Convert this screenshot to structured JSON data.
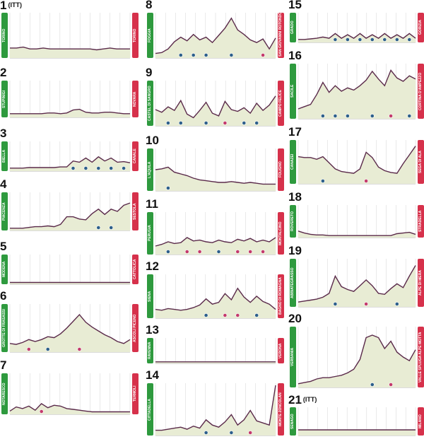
{
  "chart_data": [
    {
      "type": "area",
      "stage": "1",
      "tag": "(ITT)",
      "start": "TORINO",
      "finish": "TORINO",
      "values": [
        0.22,
        0.22,
        0.24,
        0.2,
        0.2,
        0.22,
        0.2,
        0.2,
        0.2,
        0.2,
        0.2,
        0.2,
        0.2,
        0.18,
        0.2,
        0.22,
        0.2,
        0.2,
        0.2
      ]
    },
    {
      "type": "area",
      "stage": "2",
      "tag": "",
      "start": "STUPINIGI",
      "finish": "NOVARA",
      "values": [
        0.1,
        0.1,
        0.1,
        0.1,
        0.1,
        0.1,
        0.12,
        0.12,
        0.1,
        0.12,
        0.2,
        0.22,
        0.14,
        0.12,
        0.12,
        0.14,
        0.14,
        0.12,
        0.1,
        0.1
      ]
    },
    {
      "type": "area",
      "stage": "3",
      "tag": "",
      "start": "BIELLA",
      "finish": "CANALE",
      "values": [
        0.1,
        0.1,
        0.1,
        0.12,
        0.12,
        0.12,
        0.12,
        0.12,
        0.14,
        0.14,
        0.34,
        0.3,
        0.44,
        0.3,
        0.48,
        0.34,
        0.44,
        0.3,
        0.32,
        0.28
      ]
    },
    {
      "type": "area",
      "stage": "4",
      "tag": "",
      "start": "PIACENZA",
      "finish": "SESTOLA",
      "values": [
        0.06,
        0.06,
        0.06,
        0.08,
        0.1,
        0.1,
        0.12,
        0.1,
        0.16,
        0.36,
        0.36,
        0.3,
        0.28,
        0.44,
        0.56,
        0.42,
        0.56,
        0.5,
        0.66,
        0.72
      ]
    },
    {
      "type": "area",
      "stage": "5",
      "tag": "",
      "start": "MODENA",
      "finish": "CATTOLICA",
      "values": [
        0.06,
        0.06,
        0.06,
        0.06,
        0.06,
        0.06,
        0.06,
        0.06,
        0.06,
        0.06,
        0.06,
        0.06,
        0.06,
        0.06,
        0.06,
        0.06,
        0.06,
        0.06,
        0.06,
        0.06
      ]
    },
    {
      "type": "area",
      "stage": "6",
      "tag": "",
      "start": "GROTTE DI FRASASSI",
      "finish": "ASCOLI PICENO",
      "values": [
        0.18,
        0.16,
        0.2,
        0.26,
        0.22,
        0.26,
        0.32,
        0.3,
        0.38,
        0.5,
        0.64,
        0.78,
        0.62,
        0.52,
        0.44,
        0.36,
        0.3,
        0.22,
        0.18,
        0.26
      ]
    },
    {
      "type": "area",
      "stage": "7",
      "tag": "",
      "start": "NOTARESCO",
      "finish": "TERMOLI",
      "values": [
        0.08,
        0.18,
        0.14,
        0.2,
        0.1,
        0.26,
        0.16,
        0.22,
        0.2,
        0.14,
        0.12,
        0.1,
        0.08,
        0.06,
        0.06,
        0.06,
        0.06,
        0.06,
        0.06,
        0.06
      ]
    },
    {
      "type": "area",
      "stage": "8",
      "tag": "",
      "start": "FOGGIA",
      "finish": "SAN GIOVANNI ROTONDO",
      "values": [
        0.1,
        0.12,
        0.2,
        0.36,
        0.46,
        0.38,
        0.52,
        0.4,
        0.46,
        0.34,
        0.5,
        0.66,
        0.88,
        0.62,
        0.52,
        0.4,
        0.34,
        0.42,
        0.2,
        0.44
      ]
    },
    {
      "type": "area",
      "stage": "9",
      "tag": "",
      "start": "CASTEL DI SANGRO",
      "finish": "CAMPO FELICE",
      "values": [
        0.36,
        0.3,
        0.42,
        0.34,
        0.56,
        0.26,
        0.18,
        0.34,
        0.52,
        0.28,
        0.22,
        0.54,
        0.36,
        0.32,
        0.4,
        0.28,
        0.5,
        0.34,
        0.46,
        0.66
      ]
    },
    {
      "type": "area",
      "stage": "10",
      "tag": "",
      "start": "L'AQUILA",
      "finish": "FOLIGNO",
      "values": [
        0.5,
        0.52,
        0.56,
        0.44,
        0.4,
        0.36,
        0.3,
        0.26,
        0.24,
        0.22,
        0.2,
        0.2,
        0.22,
        0.2,
        0.18,
        0.2,
        0.18,
        0.16,
        0.16,
        0.16
      ]
    },
    {
      "type": "area",
      "stage": "11",
      "tag": "",
      "start": "PERUGIA",
      "finish": "MONTALCINO",
      "values": [
        0.2,
        0.24,
        0.3,
        0.26,
        0.28,
        0.4,
        0.32,
        0.34,
        0.3,
        0.28,
        0.34,
        0.3,
        0.28,
        0.36,
        0.32,
        0.38,
        0.3,
        0.34,
        0.3,
        0.4
      ]
    },
    {
      "type": "area",
      "stage": "12",
      "tag": "",
      "start": "SIENA",
      "finish": "BAGNO DI ROMAGNA",
      "values": [
        0.2,
        0.18,
        0.22,
        0.2,
        0.18,
        0.2,
        0.24,
        0.3,
        0.44,
        0.32,
        0.36,
        0.56,
        0.42,
        0.68,
        0.48,
        0.36,
        0.5,
        0.38,
        0.32,
        0.2
      ]
    },
    {
      "type": "area",
      "stage": "13",
      "tag": "",
      "start": "RAVENNA",
      "finish": "VERONA",
      "values": [
        0.06,
        0.06,
        0.06,
        0.06,
        0.06,
        0.06,
        0.06,
        0.06,
        0.06,
        0.06,
        0.06,
        0.06,
        0.06,
        0.06,
        0.06,
        0.06,
        0.06,
        0.06,
        0.06,
        0.06
      ]
    },
    {
      "type": "area",
      "stage": "14",
      "tag": "",
      "start": "CITTADELLA",
      "finish": "MONTE ZONCOLAN",
      "values": [
        0.1,
        0.1,
        0.12,
        0.14,
        0.16,
        0.12,
        0.18,
        0.14,
        0.3,
        0.2,
        0.16,
        0.26,
        0.4,
        0.2,
        0.3,
        0.48,
        0.28,
        0.24,
        0.2,
        0.96
      ]
    },
    {
      "type": "area",
      "stage": "15",
      "tag": "",
      "start": "GRADO",
      "finish": "GORIZIA",
      "values": [
        0.1,
        0.1,
        0.12,
        0.14,
        0.18,
        0.14,
        0.3,
        0.14,
        0.26,
        0.14,
        0.3,
        0.14,
        0.26,
        0.14,
        0.3,
        0.14,
        0.26,
        0.14,
        0.3,
        0.14
      ]
    },
    {
      "type": "area",
      "stage": "16",
      "tag": "",
      "start": "SACILE",
      "finish": "CORTINA D'AMPEZZO",
      "values": [
        0.18,
        0.22,
        0.26,
        0.44,
        0.66,
        0.48,
        0.6,
        0.5,
        0.56,
        0.52,
        0.6,
        0.7,
        0.86,
        0.72,
        0.6,
        0.88,
        0.74,
        0.68,
        0.78,
        0.72
      ]
    },
    {
      "type": "area",
      "stage": "17",
      "tag": "",
      "start": "CANAZEI",
      "finish": "SEGA DI ALA",
      "values": [
        0.62,
        0.6,
        0.6,
        0.56,
        0.62,
        0.48,
        0.34,
        0.28,
        0.26,
        0.24,
        0.34,
        0.72,
        0.6,
        0.38,
        0.3,
        0.26,
        0.24,
        0.46,
        0.66,
        0.86
      ]
    },
    {
      "type": "area",
      "stage": "18",
      "tag": "",
      "start": "ROVERETO",
      "finish": "STRADELLA",
      "values": [
        0.2,
        0.14,
        0.1,
        0.08,
        0.08,
        0.06,
        0.06,
        0.06,
        0.06,
        0.06,
        0.06,
        0.06,
        0.06,
        0.06,
        0.06,
        0.06,
        0.12,
        0.14,
        0.16,
        0.1
      ]
    },
    {
      "type": "area",
      "stage": "19",
      "tag": "",
      "start": "ABBIATEGRASSO",
      "finish": "ALPE DI MERA",
      "values": [
        0.1,
        0.12,
        0.14,
        0.16,
        0.2,
        0.28,
        0.64,
        0.42,
        0.36,
        0.32,
        0.44,
        0.56,
        0.44,
        0.28,
        0.26,
        0.38,
        0.48,
        0.4,
        0.64,
        0.86
      ]
    },
    {
      "type": "area",
      "stage": "20",
      "tag": "",
      "start": "VERBANIA",
      "finish": "VALLE SPLUGA ALPE MOTTA",
      "values": [
        0.06,
        0.08,
        0.1,
        0.14,
        0.16,
        0.16,
        0.18,
        0.2,
        0.24,
        0.3,
        0.46,
        0.82,
        0.86,
        0.82,
        0.64,
        0.76,
        0.58,
        0.5,
        0.44,
        0.62
      ]
    },
    {
      "type": "area",
      "stage": "21",
      "tag": "(ITT)",
      "start": "SENAGO",
      "finish": "MILANO",
      "values": [
        0.2,
        0.2,
        0.2,
        0.2,
        0.2,
        0.2,
        0.2,
        0.2,
        0.2,
        0.2,
        0.2,
        0.2,
        0.2,
        0.2,
        0.2,
        0.2,
        0.2,
        0.2,
        0.2,
        0.2
      ]
    }
  ],
  "colors": {
    "fill": "#e8ecd4",
    "line": "#5a2a4a",
    "start": "#2e9a3e",
    "finish": "#d6314b",
    "grid": "#c8c8c8",
    "climb_red": "#c33a6c",
    "climb_blue": "#2d5f8a"
  }
}
